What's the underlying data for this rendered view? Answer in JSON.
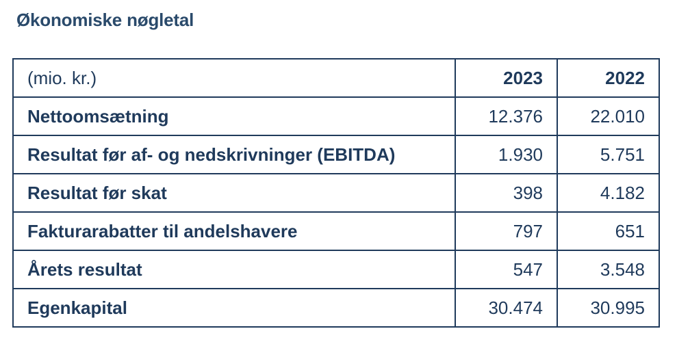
{
  "page": {
    "title": "Økonomiske nøgletal"
  },
  "table": {
    "unit_label": "(mio. kr.)",
    "years": [
      "2023",
      "2022"
    ],
    "rows": [
      {
        "label": "Nettoomsætning",
        "values": [
          "12.376",
          "22.010"
        ]
      },
      {
        "label": "Resultat før af- og nedskrivninger (EBITDA)",
        "values": [
          "1.930",
          "5.751"
        ]
      },
      {
        "label": "Resultat før skat",
        "values": [
          "398",
          "4.182"
        ]
      },
      {
        "label": "Fakturarabatter til andelshavere",
        "values": [
          "797",
          "651"
        ]
      },
      {
        "label": "Årets resultat",
        "values": [
          "547",
          "3.548"
        ]
      },
      {
        "label": "Egenkapital",
        "values": [
          "30.474",
          "30.995"
        ]
      }
    ]
  },
  "colors": {
    "text": "#1f3a5b",
    "title": "#2a4a6b",
    "border": "#1f3a5b"
  }
}
